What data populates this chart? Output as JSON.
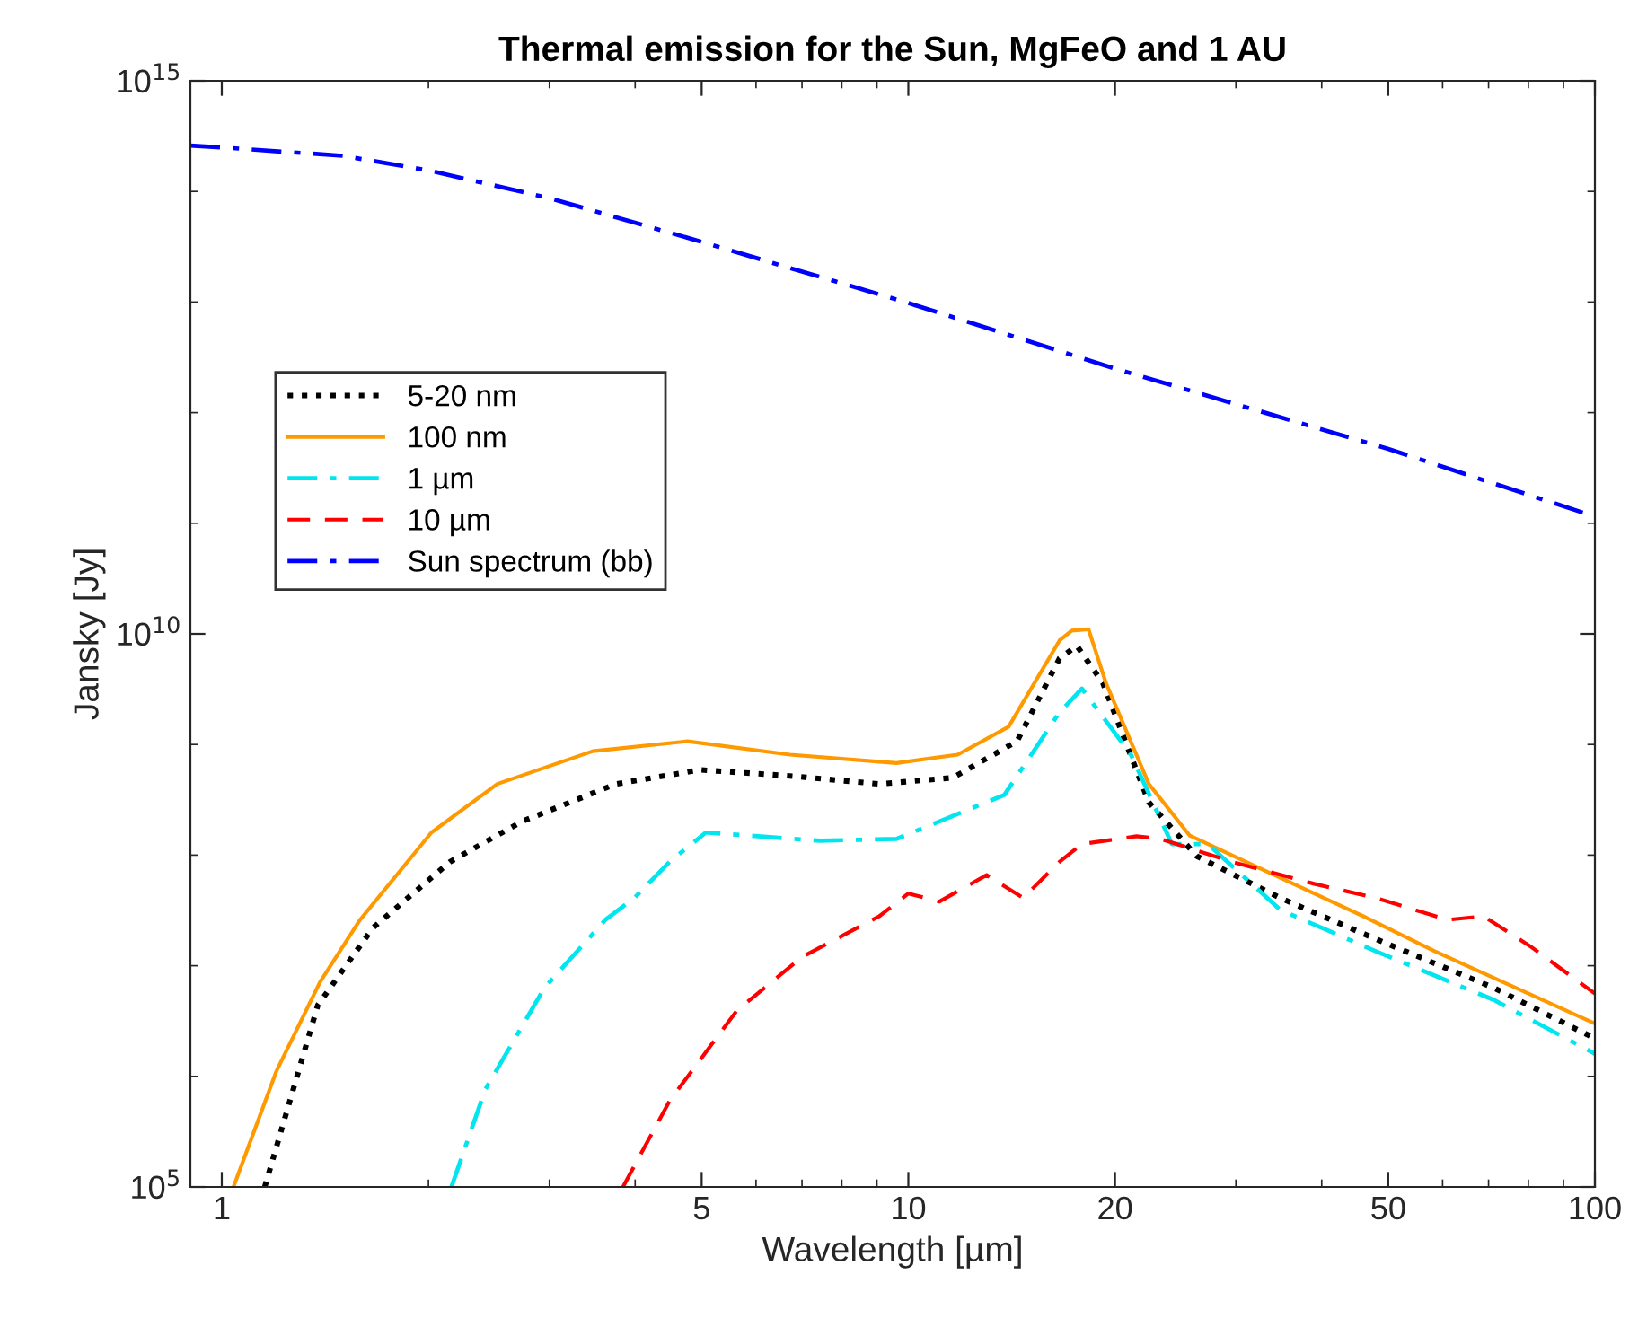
{
  "chart_data": {
    "type": "line",
    "title": "Thermal emission for the Sun, MgFeO and 1 AU",
    "xlabel": "Wavelength [µm]",
    "ylabel": "Jansky [Jy]",
    "log": "xy",
    "grid": false,
    "legend": "top left",
    "xlim": [
      0.9,
      100
    ],
    "xticks": [
      1,
      5,
      10,
      20,
      50,
      100
    ],
    "ylim": [
      100000.0,
      1000000000000000.0
    ],
    "yticks": [
      {
        "value": 100000.0,
        "label": "10$^{5}$"
      },
      {
        "value": 10000000000.0,
        "label": "10$^{10}$"
      },
      {
        "value": 1000000000000000.0,
        "label": "10$^{15}$"
      }
    ],
    "series": [
      {
        "name": "5-20 nm",
        "color": "#000000",
        "line_style": "dotted",
        "x": [
          1.155,
          1.38,
          1.66,
          2.15,
          2.73,
          3.75,
          4.98,
          6.72,
          9.07,
          11.6,
          14.4,
          16.6,
          17.6,
          19.2,
          22.4,
          26.3,
          34.8,
          48,
          71.3,
          100
        ],
        "values": [
          100000.0,
          4400000.0,
          22000000.0,
          87000000.0,
          200000000.0,
          440000000.0,
          590000000.0,
          520000000.0,
          440000000.0,
          500000000.0,
          1070000000.0,
          6000000000.0,
          7800000000.0,
          3600000000.0,
          300000000.0,
          98000000.0,
          41000000.0,
          17400000.0,
          6300000.0,
          2200000.0
        ]
      },
      {
        "name": "100 nm",
        "color": "#ff9900",
        "line_style": "solid",
        "x": [
          1.04,
          1.2,
          1.39,
          1.59,
          2.02,
          2.52,
          3.47,
          4.77,
          6.72,
          9.61,
          11.8,
          14,
          16.6,
          17.3,
          18.3,
          19.4,
          22.4,
          25.7,
          32.2,
          46,
          58.5,
          100
        ],
        "values": [
          100000.0,
          1100000.0,
          7100000.0,
          26000000.0,
          160000000.0,
          440000000.0,
          870000000.0,
          1070000000.0,
          810000000.0,
          680000000.0,
          810000000.0,
          1450000000.0,
          8700000000.0,
          10700000000.0,
          11000000000.0,
          3600000000.0,
          440000000.0,
          150000000.0,
          78000000.0,
          28000000.0,
          13500000.0,
          3000000.0
        ]
      },
      {
        "name": "1 µm",
        "color": "#00e5ee",
        "line_style": "dashdot",
        "x": [
          2.16,
          2.42,
          2.95,
          3.62,
          3.99,
          4.49,
          5.07,
          7.44,
          9.61,
          13.8,
          16.6,
          17.9,
          21.1,
          24.2,
          27.3,
          34.8,
          48,
          71.3,
          100
        ],
        "values": [
          100000.0,
          760000.0,
          6300000.0,
          26000000.0,
          41000000.0,
          87000000.0,
          160000000.0,
          135000000.0,
          140000000.0,
          350000000.0,
          1950000000.0,
          3200000000.0,
          810000000.0,
          126000000.0,
          126000000.0,
          32000000.0,
          13500000.0,
          4900000.0,
          1600000.0
        ]
      },
      {
        "name": "10 µm",
        "color": "#ff0000",
        "line_style": "dashed",
        "x": [
          3.84,
          4.49,
          5.62,
          7.0,
          9.07,
          10,
          11.1,
          13,
          14.7,
          16.6,
          17.9,
          21.5,
          23.3,
          29.6,
          39,
          48,
          61,
          68.8,
          80.5,
          100
        ],
        "values": [
          100000.0,
          600000.0,
          3900000.0,
          12000000.0,
          28000000.0,
          45000000.0,
          38000000.0,
          66000000.0,
          41000000.0,
          87000000.0,
          126000000.0,
          148000000.0,
          140000000.0,
          87000000.0,
          55000000.0,
          41000000.0,
          26000000.0,
          28000000.0,
          15000000.0,
          5600000.0
        ]
      },
      {
        "name": "Sun spectrum (bb)",
        "color": "#0000ff",
        "line_style": "dashdot",
        "x": [
          0.9,
          1,
          1.5,
          2,
          3,
          5,
          10,
          20,
          50,
          100
        ],
        "values": [
          260000000000000.0,
          250000000000000.0,
          210000000000000.0,
          155000000000000.0,
          87000000000000.0,
          35000000000000.0,
          9800000000000.0,
          2500000000000.0,
          470000000000.0,
          115000000000.0
        ]
      }
    ]
  }
}
